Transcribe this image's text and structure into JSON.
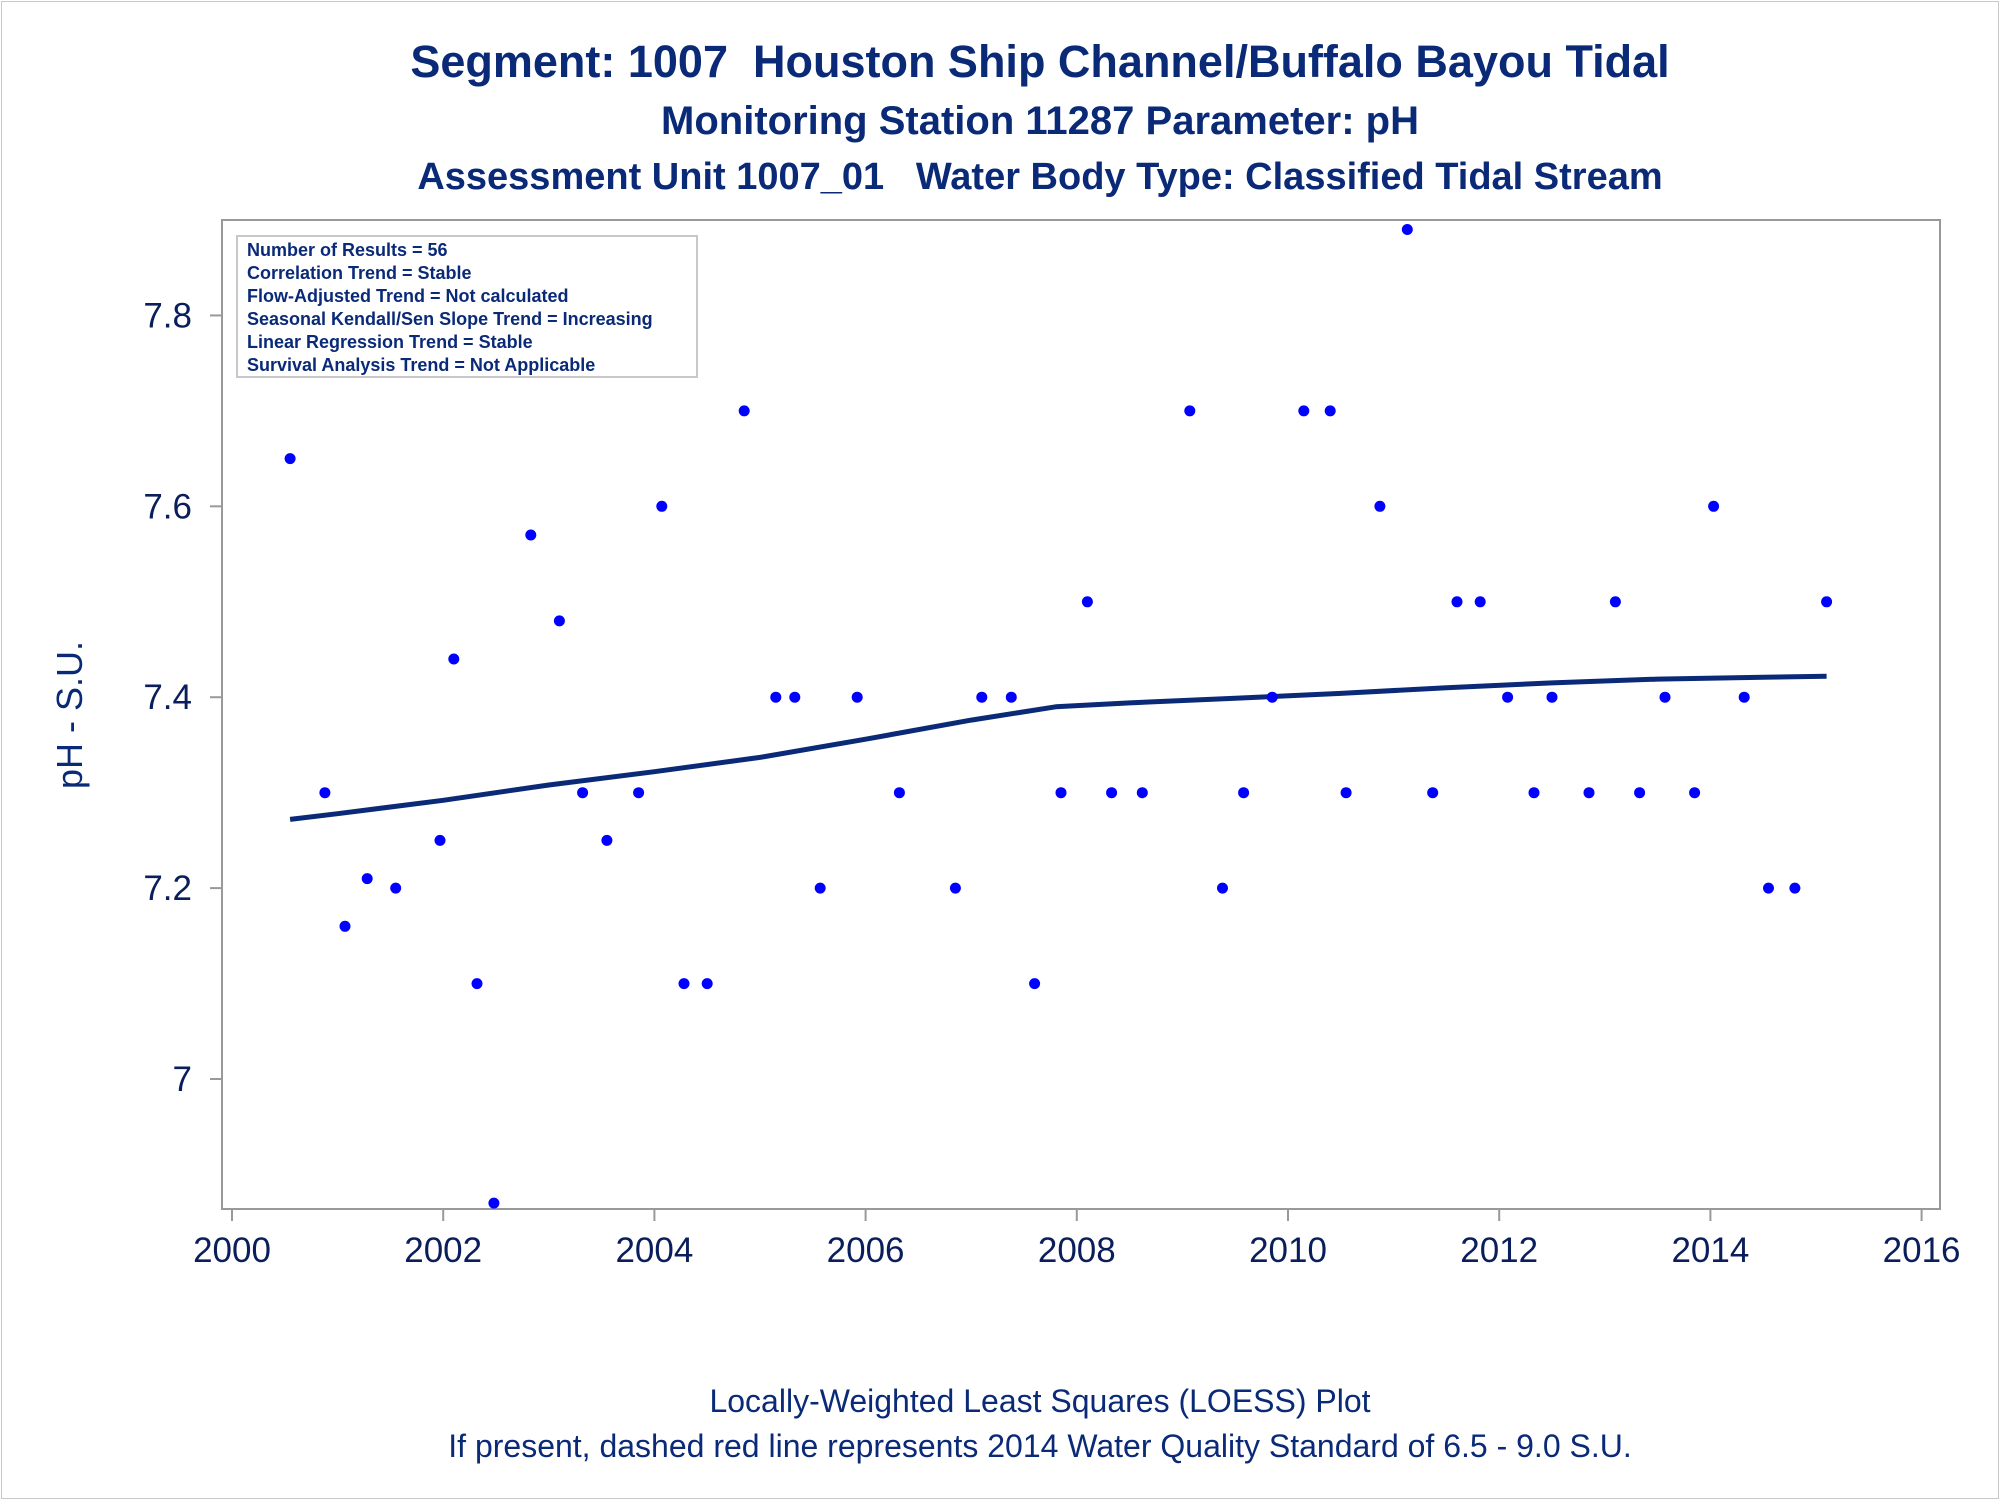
{
  "title": "Segment: 1007  Houston Ship Channel/Buffalo Bayou Tidal",
  "subtitle": "Monitoring Station 11287 Parameter: pH",
  "subtitle2": "Assessment Unit 1007_01   Water Body Type: Classified Tidal Stream",
  "footnote1": "Locally-Weighted Least Squares (LOESS) Plot",
  "footnote2": "If present, dashed red line represents 2014 Water Quality Standard of 6.5 - 9.0 S.U.",
  "legend_lines": [
    "Number of Results = 56",
    "Correlation Trend = Stable",
    "Flow-Adjusted Trend = Not calculated",
    "Seasonal Kendall/Sen Slope Trend = Increasing",
    "Linear Regression Trend = Stable",
    "Survival Analysis Trend = Not Applicable"
  ],
  "colors": {
    "points": "#0000ff",
    "loess": "#0a2a78",
    "text": "#0a2a78",
    "axis": "#999999"
  },
  "chart_data": {
    "type": "scatter",
    "ylabel": "pH - S.U.",
    "xlabel": "",
    "xlim": [
      1999.85,
      2016.1
    ],
    "ylim": [
      6.87,
      7.91
    ],
    "xticks": [
      2000,
      2002,
      2004,
      2006,
      2008,
      2010,
      2012,
      2014,
      2016
    ],
    "yticks": [
      7,
      7.2,
      7.4,
      7.6,
      7.8
    ],
    "ytick_labels": [
      "7",
      "7.2",
      "7.4",
      "7.6",
      "7.8"
    ],
    "grid": false,
    "legend": "top-left",
    "series": [
      {
        "x": [
          2000.55,
          2000.88,
          2001.07,
          2001.28,
          2001.55,
          2001.97,
          2002.1,
          2002.32,
          2002.48,
          2002.83,
          2003.1,
          2003.32,
          2003.55,
          2003.85,
          2004.07,
          2004.28,
          2004.5,
          2004.85,
          2005.15,
          2005.33,
          2005.57,
          2005.92,
          2006.32,
          2006.85,
          2007.1,
          2007.38,
          2007.6,
          2007.85,
          2008.1,
          2008.33,
          2008.62,
          2009.07,
          2009.38,
          2009.58,
          2009.85,
          2010.15,
          2010.4,
          2010.55,
          2010.87,
          2011.13,
          2011.37,
          2011.6,
          2011.82,
          2012.08,
          2012.33,
          2012.5,
          2012.85,
          2013.1,
          2013.33,
          2013.57,
          2013.85,
          2014.03,
          2014.32,
          2014.55,
          2014.8,
          2015.1
        ],
        "y": [
          7.65,
          7.3,
          7.16,
          7.21,
          7.2,
          7.25,
          7.44,
          7.1,
          6.87,
          7.57,
          7.48,
          7.3,
          7.25,
          7.3,
          7.6,
          7.1,
          7.1,
          7.7,
          7.4,
          7.4,
          7.2,
          7.4,
          7.3,
          7.2,
          7.4,
          7.4,
          7.1,
          7.3,
          7.5,
          7.3,
          7.3,
          7.7,
          7.2,
          7.3,
          7.4,
          7.7,
          7.7,
          7.3,
          7.6,
          7.89,
          7.3,
          7.5,
          7.5,
          7.4,
          7.3,
          7.4,
          7.3,
          7.5,
          7.3,
          7.4,
          7.3,
          7.6,
          7.4,
          7.2,
          7.2,
          7.5
        ]
      },
      {
        "type": "line",
        "x": [
          2000.55,
          2001.0,
          2002.0,
          2003.0,
          2004.0,
          2005.0,
          2006.0,
          2007.0,
          2007.8,
          2008.5,
          2009.5,
          2010.5,
          2011.5,
          2012.5,
          2013.5,
          2014.5,
          2015.1
        ],
        "y": [
          7.272,
          7.278,
          7.292,
          7.308,
          7.322,
          7.337,
          7.356,
          7.376,
          7.39,
          7.394,
          7.399,
          7.404,
          7.41,
          7.415,
          7.419,
          7.421,
          7.422
        ]
      }
    ]
  }
}
